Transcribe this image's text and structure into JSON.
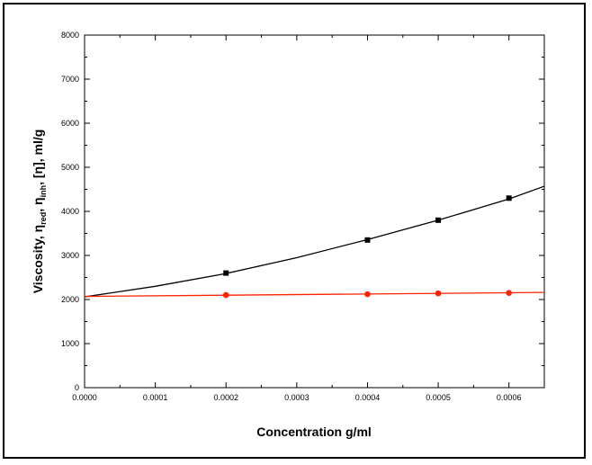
{
  "chart_data": {
    "type": "scatter",
    "title": "",
    "xlabel": "Concentration g/ml",
    "ylabel_parts": [
      "Viscosity, η",
      "red",
      ", η",
      "inh",
      ", [η], ml/g"
    ],
    "xlim": [
      0,
      0.00065
    ],
    "ylim": [
      0,
      8000
    ],
    "x_ticks": [
      0.0,
      0.0001,
      0.0002,
      0.0003,
      0.0004,
      0.0005,
      0.0006
    ],
    "x_tick_labels": [
      "0.0000",
      "0.0001",
      "0.0002",
      "0.0003",
      "0.0004",
      "0.0005",
      "0.0006"
    ],
    "y_ticks": [
      0,
      1000,
      2000,
      3000,
      4000,
      5000,
      6000,
      7000,
      8000
    ],
    "y_tick_labels": [
      "0",
      "1000",
      "2000",
      "3000",
      "4000",
      "5000",
      "6000",
      "7000",
      "8000"
    ],
    "grid": false,
    "series": [
      {
        "marker": "square",
        "color": "#000000",
        "points": {
          "x": [
            0.0002,
            0.0004,
            0.0005,
            0.0006
          ],
          "y": [
            2600,
            3350,
            3800,
            4300
          ]
        },
        "fit": {
          "x": [
            0.0,
            0.0001,
            0.0002,
            0.0003,
            0.0004,
            0.0005,
            0.0006,
            0.00065
          ],
          "y": [
            2060,
            2300,
            2590,
            2950,
            3360,
            3800,
            4280,
            4570
          ]
        }
      },
      {
        "marker": "circle",
        "color": "#ff2200",
        "points": {
          "x": [
            0.0002,
            0.0004,
            0.0005,
            0.0006
          ],
          "y": [
            2100,
            2120,
            2140,
            2150
          ]
        },
        "fit": {
          "x": [
            0.0,
            0.00065
          ],
          "y": [
            2070,
            2160
          ]
        }
      }
    ]
  }
}
